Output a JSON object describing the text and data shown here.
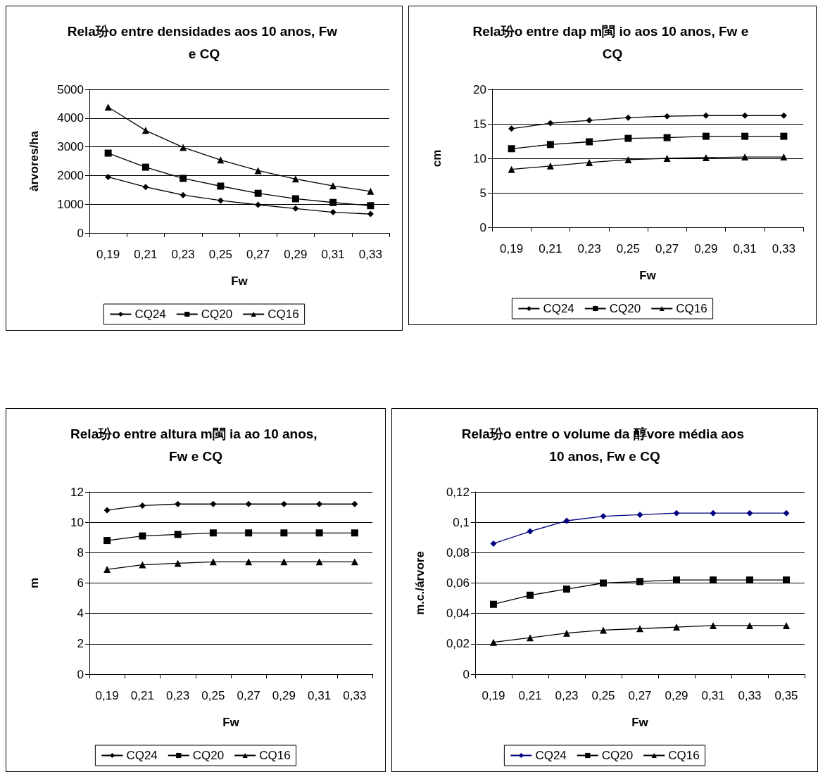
{
  "chart_data": [
    {
      "type": "line",
      "title": "Rela玢o entre densidades aos 10 anos, Fw e CQ",
      "xlabel": "Fw",
      "ylabel": "àrvores/ha",
      "categories": [
        "0,19",
        "0,21",
        "0,23",
        "0,25",
        "0,27",
        "0,29",
        "0,31",
        "0,33"
      ],
      "series": [
        {
          "name": "CQ24",
          "color": "#000000",
          "marker": "diamond",
          "values": [
            1950,
            1600,
            1320,
            1130,
            980,
            850,
            720,
            660
          ]
        },
        {
          "name": "CQ20",
          "color": "#000000",
          "marker": "square",
          "values": [
            2780,
            2290,
            1900,
            1630,
            1380,
            1190,
            1060,
            950
          ]
        },
        {
          "name": "CQ16",
          "color": "#000000",
          "marker": "triangle",
          "values": [
            4380,
            3570,
            2980,
            2540,
            2170,
            1880,
            1640,
            1450
          ]
        }
      ],
      "ylim": [
        0,
        5000
      ],
      "yticks": [
        0,
        1000,
        2000,
        3000,
        4000,
        5000
      ],
      "grid": "y",
      "legend": "bottom",
      "line_style": "solid"
    },
    {
      "type": "line",
      "title": "Rela玢o entre dap m閩 io aos 10 anos, Fw e CQ",
      "xlabel": "Fw",
      "ylabel": "cm",
      "categories": [
        "0,19",
        "0,21",
        "0,23",
        "0,25",
        "0,27",
        "0,29",
        "0,31",
        "0,33"
      ],
      "series": [
        {
          "name": "CQ24",
          "color": "#000000",
          "marker": "diamond",
          "values": [
            14.3,
            15.1,
            15.5,
            15.9,
            16.1,
            16.2,
            16.2,
            16.2
          ]
        },
        {
          "name": "CQ20",
          "color": "#000000",
          "marker": "square",
          "values": [
            11.4,
            12.0,
            12.4,
            12.9,
            13.0,
            13.2,
            13.2,
            13.2
          ]
        },
        {
          "name": "CQ16",
          "color": "#000000",
          "marker": "triangle",
          "values": [
            8.4,
            8.9,
            9.4,
            9.8,
            10.0,
            10.1,
            10.2,
            10.2
          ]
        }
      ],
      "ylim": [
        0,
        20
      ],
      "yticks": [
        0,
        5,
        10,
        15,
        20
      ],
      "grid": "y",
      "legend": "bottom",
      "line_style": "solid"
    },
    {
      "type": "line",
      "title": "Rela玢o entre altura m閩 ia ao 10 anos, Fw e CQ",
      "xlabel": "Fw",
      "ylabel": "m",
      "categories": [
        "0,19",
        "0,21",
        "0,23",
        "0,25",
        "0,27",
        "0,29",
        "0,31",
        "0,33"
      ],
      "series": [
        {
          "name": "CQ24",
          "color": "#000000",
          "marker": "diamond",
          "values": [
            10.8,
            11.1,
            11.2,
            11.2,
            11.2,
            11.2,
            11.2,
            11.2
          ]
        },
        {
          "name": "CQ20",
          "color": "#000000",
          "marker": "square",
          "values": [
            8.8,
            9.1,
            9.2,
            9.3,
            9.3,
            9.3,
            9.3,
            9.3
          ]
        },
        {
          "name": "CQ16",
          "color": "#000000",
          "marker": "triangle",
          "values": [
            6.9,
            7.2,
            7.3,
            7.4,
            7.4,
            7.4,
            7.4,
            7.4
          ]
        }
      ],
      "ylim": [
        0,
        12
      ],
      "yticks": [
        0,
        2,
        4,
        6,
        8,
        10,
        12
      ],
      "grid": "y",
      "legend": "bottom",
      "line_style": "solid"
    },
    {
      "type": "line",
      "title": "Rela玢o entre o volume da 醇vore média aos 10 anos, Fw e CQ",
      "xlabel": "Fw",
      "ylabel": "m.c./árvore",
      "categories": [
        "0,19",
        "0,21",
        "0,23",
        "0,25",
        "0,27",
        "0,29",
        "0,31",
        "0,33",
        "0,35"
      ],
      "series": [
        {
          "name": "CQ24",
          "color": "#000080",
          "marker": "diamond",
          "values": [
            0.086,
            0.094,
            0.101,
            0.104,
            0.105,
            0.106,
            0.106,
            0.106,
            0.106
          ]
        },
        {
          "name": "CQ20",
          "color": "#000000",
          "marker": "square",
          "values": [
            0.046,
            0.052,
            0.056,
            0.06,
            0.061,
            0.062,
            0.062,
            0.062,
            0.062
          ]
        },
        {
          "name": "CQ16",
          "color": "#000000",
          "marker": "triangle",
          "values": [
            0.021,
            0.024,
            0.027,
            0.029,
            0.03,
            0.031,
            0.032,
            0.032,
            0.032
          ]
        }
      ],
      "ylim": [
        0,
        0.12
      ],
      "yticks": [
        0,
        {
          "value": 0.02,
          "label": "0,02"
        },
        {
          "value": 0.04,
          "label": "0,04"
        },
        {
          "value": 0.06,
          "label": "0,06"
        },
        {
          "value": 0.08,
          "label": "0,08"
        },
        {
          "value": 0.1,
          "label": "0,1"
        },
        {
          "value": 0.12,
          "label": "0,12"
        }
      ],
      "grid": "y",
      "legend": "bottom",
      "line_style": "solid"
    }
  ]
}
